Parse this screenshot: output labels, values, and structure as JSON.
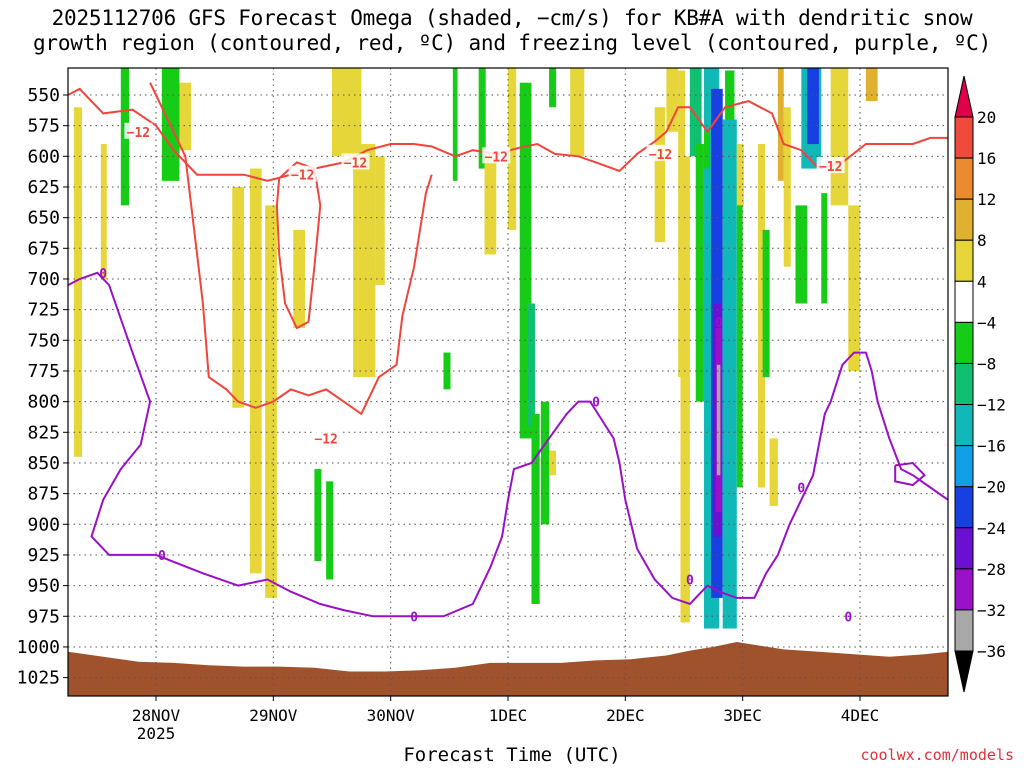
{
  "title_line1": "2025112706 GFS Forecast Omega (shaded, −cm/s) for KB#A with dendritic snow",
  "title_line2": "growth region (contoured, red, ºC) and freezing level (contoured, purple, ºC)",
  "credit": "coolwx.com/models",
  "chart_data": {
    "type": "heatmap",
    "xlabel": "Forecast Time (UTC)",
    "x_ticks": [
      {
        "t": 0.75,
        "label": "28NOV",
        "sub": "2025"
      },
      {
        "t": 1.75,
        "label": "29NOV"
      },
      {
        "t": 2.75,
        "label": "30NOV"
      },
      {
        "t": 3.75,
        "label": "1DEC"
      },
      {
        "t": 4.75,
        "label": "2DEC"
      },
      {
        "t": 5.75,
        "label": "3DEC"
      },
      {
        "t": 6.75,
        "label": "4DEC"
      }
    ],
    "x_range": [
      0,
      7.5
    ],
    "y_range": [
      528,
      1040
    ],
    "y_ticks": [
      550,
      575,
      600,
      625,
      650,
      675,
      700,
      725,
      750,
      775,
      800,
      825,
      850,
      875,
      900,
      925,
      950,
      975,
      1000,
      1025
    ],
    "colorbar_labels": [
      "20",
      "16",
      "12",
      "8",
      "4",
      "−4",
      "−8",
      "−12",
      "−16",
      "−20",
      "−24",
      "−28",
      "−32",
      "−36"
    ],
    "colorbar_colors": [
      "#e0004a",
      "#f04a3c",
      "#ec8a30",
      "#e0b030",
      "#e6d63a",
      "#ffffff",
      "#16cc16",
      "#10c070",
      "#10b8b8",
      "#10a0e8",
      "#1840e0",
      "#6a10d0",
      "#9a10c8",
      "#a8a8a8",
      "#000000"
    ],
    "surface_color": "#a0522d",
    "omega_shading": [
      {
        "t0": 0.05,
        "t1": 0.12,
        "p0": 560,
        "p1": 845,
        "color": "#e6d63a"
      },
      {
        "t0": 0.28,
        "t1": 0.33,
        "p0": 590,
        "p1": 700,
        "color": "#e6d63a"
      },
      {
        "t0": 0.45,
        "t1": 0.52,
        "p0": 528,
        "p1": 640,
        "color": "#16cc16"
      },
      {
        "t0": 0.8,
        "t1": 0.95,
        "p0": 528,
        "p1": 620,
        "color": "#16cc16"
      },
      {
        "t0": 0.95,
        "t1": 1.05,
        "p0": 540,
        "p1": 595,
        "color": "#e6d63a"
      },
      {
        "t0": 1.4,
        "t1": 1.5,
        "p0": 625,
        "p1": 805,
        "color": "#e6d63a"
      },
      {
        "t0": 1.55,
        "t1": 1.65,
        "p0": 610,
        "p1": 940,
        "color": "#e6d63a"
      },
      {
        "t0": 1.68,
        "t1": 1.78,
        "p0": 640,
        "p1": 960,
        "color": "#e6d63a"
      },
      {
        "t0": 1.92,
        "t1": 2.02,
        "p0": 660,
        "p1": 740,
        "color": "#e6d63a"
      },
      {
        "t0": 2.1,
        "t1": 2.16,
        "p0": 855,
        "p1": 930,
        "color": "#16cc16"
      },
      {
        "t0": 2.2,
        "t1": 2.26,
        "p0": 865,
        "p1": 945,
        "color": "#16cc16"
      },
      {
        "t0": 2.25,
        "t1": 2.5,
        "p0": 528,
        "p1": 600,
        "color": "#e6d63a"
      },
      {
        "t0": 2.43,
        "t1": 2.62,
        "p0": 590,
        "p1": 780,
        "color": "#e6d63a"
      },
      {
        "t0": 2.62,
        "t1": 2.7,
        "p0": 600,
        "p1": 705,
        "color": "#e6d63a"
      },
      {
        "t0": 3.2,
        "t1": 3.26,
        "p0": 760,
        "p1": 790,
        "color": "#16cc16"
      },
      {
        "t0": 3.28,
        "t1": 3.32,
        "p0": 528,
        "p1": 620,
        "color": "#16cc16"
      },
      {
        "t0": 3.5,
        "t1": 3.56,
        "p0": 528,
        "p1": 610,
        "color": "#16cc16"
      },
      {
        "t0": 3.55,
        "t1": 3.65,
        "p0": 600,
        "p1": 680,
        "color": "#e6d63a"
      },
      {
        "t0": 3.75,
        "t1": 3.82,
        "p0": 528,
        "p1": 660,
        "color": "#e6d63a"
      },
      {
        "t0": 3.85,
        "t1": 3.95,
        "p0": 540,
        "p1": 830,
        "color": "#16cc16"
      },
      {
        "t0": 3.92,
        "t1": 3.98,
        "p0": 720,
        "p1": 820,
        "color": "#10c070"
      },
      {
        "t0": 3.95,
        "t1": 4.02,
        "p0": 810,
        "p1": 965,
        "color": "#16cc16"
      },
      {
        "t0": 4.03,
        "t1": 4.1,
        "p0": 800,
        "p1": 900,
        "color": "#16cc16"
      },
      {
        "t0": 4.1,
        "t1": 4.16,
        "p0": 840,
        "p1": 860,
        "color": "#e6d63a"
      },
      {
        "t0": 4.1,
        "t1": 4.16,
        "p0": 528,
        "p1": 560,
        "color": "#16cc16"
      },
      {
        "t0": 4.28,
        "t1": 4.4,
        "p0": 528,
        "p1": 600,
        "color": "#e6d63a"
      },
      {
        "t0": 5.0,
        "t1": 5.09,
        "p0": 560,
        "p1": 670,
        "color": "#e6d63a"
      },
      {
        "t0": 5.1,
        "t1": 5.2,
        "p0": 528,
        "p1": 580,
        "color": "#e6d63a"
      },
      {
        "t0": 5.2,
        "t1": 5.26,
        "p0": 530,
        "p1": 780,
        "color": "#e6d63a"
      },
      {
        "t0": 5.22,
        "t1": 5.3,
        "p0": 600,
        "p1": 980,
        "color": "#e6d63a"
      },
      {
        "t0": 5.3,
        "t1": 5.4,
        "p0": 528,
        "p1": 600,
        "color": "#10c070"
      },
      {
        "t0": 5.35,
        "t1": 5.42,
        "p0": 590,
        "p1": 800,
        "color": "#16cc16"
      },
      {
        "t0": 5.42,
        "t1": 5.55,
        "p0": 528,
        "p1": 985,
        "color": "#10b8b8"
      },
      {
        "t0": 5.42,
        "t1": 5.47,
        "p0": 580,
        "p1": 610,
        "color": "#16cc16"
      },
      {
        "t0": 5.48,
        "t1": 5.58,
        "p0": 545,
        "p1": 960,
        "color": "#1840e0"
      },
      {
        "t0": 5.5,
        "t1": 5.57,
        "p0": 720,
        "p1": 910,
        "color": "#6a10d0"
      },
      {
        "t0": 5.52,
        "t1": 5.57,
        "p0": 740,
        "p1": 890,
        "color": "#9a10c8"
      },
      {
        "t0": 5.53,
        "t1": 5.56,
        "p0": 770,
        "p1": 860,
        "color": "#a8a8a8"
      },
      {
        "t0": 5.58,
        "t1": 5.7,
        "p0": 570,
        "p1": 985,
        "color": "#10b8b8"
      },
      {
        "t0": 5.6,
        "t1": 5.68,
        "p0": 530,
        "p1": 570,
        "color": "#16cc16"
      },
      {
        "t0": 5.7,
        "t1": 5.75,
        "p0": 620,
        "p1": 870,
        "color": "#16cc16"
      },
      {
        "t0": 5.7,
        "t1": 5.76,
        "p0": 590,
        "p1": 640,
        "color": "#e6d63a"
      },
      {
        "t0": 5.88,
        "t1": 5.94,
        "p0": 590,
        "p1": 870,
        "color": "#e6d63a"
      },
      {
        "t0": 5.92,
        "t1": 5.98,
        "p0": 660,
        "p1": 780,
        "color": "#16cc16"
      },
      {
        "t0": 5.98,
        "t1": 6.05,
        "p0": 830,
        "p1": 885,
        "color": "#e6d63a"
      },
      {
        "t0": 6.05,
        "t1": 6.1,
        "p0": 528,
        "p1": 620,
        "color": "#e0b030"
      },
      {
        "t0": 6.1,
        "t1": 6.16,
        "p0": 560,
        "p1": 690,
        "color": "#e6d63a"
      },
      {
        "t0": 6.2,
        "t1": 6.3,
        "p0": 640,
        "p1": 720,
        "color": "#16cc16"
      },
      {
        "t0": 6.25,
        "t1": 6.42,
        "p0": 528,
        "p1": 610,
        "color": "#10b8b8"
      },
      {
        "t0": 6.3,
        "t1": 6.4,
        "p0": 528,
        "p1": 590,
        "color": "#1840e0"
      },
      {
        "t0": 6.42,
        "t1": 6.47,
        "p0": 630,
        "p1": 720,
        "color": "#16cc16"
      },
      {
        "t0": 6.5,
        "t1": 6.65,
        "p0": 528,
        "p1": 640,
        "color": "#e6d63a"
      },
      {
        "t0": 6.65,
        "t1": 6.75,
        "p0": 640,
        "p1": 775,
        "color": "#e6d63a"
      },
      {
        "t0": 6.8,
        "t1": 6.9,
        "p0": 528,
        "p1": 555,
        "color": "#e0b030"
      }
    ],
    "dgz_contour": {
      "label": "−12",
      "top_line": [
        [
          0,
          550
        ],
        [
          0.1,
          545
        ],
        [
          0.3,
          565
        ],
        [
          0.55,
          562
        ],
        [
          0.75,
          575
        ],
        [
          0.9,
          595
        ],
        [
          1.1,
          615
        ],
        [
          1.3,
          615
        ],
        [
          1.5,
          615
        ],
        [
          1.7,
          620
        ],
        [
          1.9,
          615
        ],
        [
          2.1,
          610
        ],
        [
          2.35,
          605
        ],
        [
          2.55,
          595
        ],
        [
          2.75,
          590
        ],
        [
          2.95,
          590
        ],
        [
          3.1,
          592
        ],
        [
          3.3,
          600
        ],
        [
          3.45,
          595
        ],
        [
          3.65,
          598
        ],
        [
          3.85,
          593
        ],
        [
          4.0,
          590
        ],
        [
          4.15,
          598
        ],
        [
          4.35,
          600
        ],
        [
          4.5,
          605
        ],
        [
          4.7,
          612
        ],
        [
          4.85,
          598
        ],
        [
          5.0,
          588
        ],
        [
          5.1,
          580
        ],
        [
          5.2,
          560
        ],
        [
          5.3,
          560
        ],
        [
          5.45,
          580
        ],
        [
          5.6,
          560
        ],
        [
          5.8,
          555
        ],
        [
          6.0,
          565
        ],
        [
          6.1,
          590
        ],
        [
          6.25,
          595
        ],
        [
          6.4,
          610
        ],
        [
          6.6,
          605
        ],
        [
          6.8,
          590
        ],
        [
          7.0,
          590
        ],
        [
          7.2,
          590
        ],
        [
          7.35,
          585
        ],
        [
          7.5,
          585
        ]
      ],
      "bottom_line": [
        [
          0.7,
          540
        ],
        [
          1.0,
          600
        ],
        [
          1.1,
          680
        ],
        [
          1.15,
          720
        ],
        [
          1.2,
          780
        ],
        [
          1.35,
          790
        ],
        [
          1.45,
          800
        ],
        [
          1.6,
          805
        ],
        [
          1.75,
          800
        ],
        [
          1.9,
          790
        ],
        [
          2.05,
          795
        ],
        [
          2.2,
          790
        ],
        [
          2.35,
          800
        ],
        [
          2.5,
          810
        ],
        [
          2.65,
          780
        ],
        [
          2.8,
          770
        ],
        [
          2.85,
          730
        ],
        [
          2.95,
          690
        ],
        [
          3.0,
          660
        ],
        [
          3.05,
          630
        ],
        [
          3.1,
          615
        ]
      ],
      "inner_loop": [
        [
          1.8,
          618
        ],
        [
          1.95,
          605
        ],
        [
          2.1,
          610
        ],
        [
          2.15,
          640
        ],
        [
          2.1,
          690
        ],
        [
          2.05,
          735
        ],
        [
          1.95,
          740
        ],
        [
          1.85,
          720
        ],
        [
          1.8,
          680
        ],
        [
          1.78,
          640
        ],
        [
          1.8,
          618
        ]
      ]
    },
    "freezing_contour": {
      "label": "0",
      "line": [
        [
          0,
          705
        ],
        [
          0.1,
          700
        ],
        [
          0.25,
          695
        ],
        [
          0.35,
          705
        ],
        [
          0.55,
          760
        ],
        [
          0.7,
          800
        ],
        [
          0.62,
          835
        ],
        [
          0.45,
          855
        ],
        [
          0.3,
          880
        ],
        [
          0.2,
          910
        ],
        [
          0.35,
          925
        ],
        [
          0.75,
          925
        ],
        [
          1.15,
          940
        ],
        [
          1.45,
          950
        ],
        [
          1.7,
          945
        ],
        [
          1.9,
          955
        ],
        [
          2.15,
          965
        ],
        [
          2.35,
          970
        ],
        [
          2.6,
          975
        ],
        [
          2.9,
          975
        ],
        [
          3.2,
          975
        ],
        [
          3.45,
          965
        ],
        [
          3.6,
          935
        ],
        [
          3.7,
          910
        ],
        [
          3.75,
          880
        ],
        [
          3.8,
          855
        ],
        [
          3.95,
          850
        ],
        [
          4.1,
          830
        ],
        [
          4.25,
          810
        ],
        [
          4.35,
          800
        ],
        [
          4.45,
          800
        ],
        [
          4.55,
          815
        ],
        [
          4.65,
          830
        ],
        [
          4.7,
          850
        ],
        [
          4.75,
          880
        ],
        [
          4.85,
          920
        ],
        [
          5.0,
          945
        ],
        [
          5.15,
          960
        ],
        [
          5.3,
          965
        ],
        [
          5.45,
          950
        ],
        [
          5.55,
          955
        ],
        [
          5.7,
          960
        ],
        [
          5.85,
          960
        ],
        [
          5.95,
          940
        ],
        [
          6.05,
          925
        ],
        [
          6.15,
          900
        ],
        [
          6.25,
          880
        ],
        [
          6.35,
          860
        ],
        [
          6.4,
          835
        ],
        [
          6.45,
          810
        ],
        [
          6.5,
          800
        ],
        [
          6.6,
          770
        ],
        [
          6.7,
          760
        ],
        [
          6.8,
          760
        ],
        [
          6.85,
          775
        ],
        [
          6.9,
          800
        ],
        [
          7.0,
          830
        ],
        [
          7.1,
          855
        ],
        [
          7.2,
          860
        ],
        [
          7.35,
          870
        ],
        [
          7.5,
          880
        ]
      ],
      "small_loop": [
        [
          7.05,
          852
        ],
        [
          7.2,
          850
        ],
        [
          7.3,
          860
        ],
        [
          7.2,
          868
        ],
        [
          7.05,
          865
        ],
        [
          7.05,
          852
        ]
      ]
    },
    "surface_pressure": [
      [
        0,
        1004
      ],
      [
        0.3,
        1008
      ],
      [
        0.6,
        1012
      ],
      [
        0.9,
        1013
      ],
      [
        1.2,
        1015
      ],
      [
        1.5,
        1016
      ],
      [
        1.8,
        1016
      ],
      [
        2.1,
        1017
      ],
      [
        2.4,
        1020
      ],
      [
        2.7,
        1020
      ],
      [
        3.0,
        1019
      ],
      [
        3.3,
        1017
      ],
      [
        3.6,
        1013
      ],
      [
        3.9,
        1013
      ],
      [
        4.2,
        1013
      ],
      [
        4.5,
        1011
      ],
      [
        4.8,
        1010
      ],
      [
        5.1,
        1007
      ],
      [
        5.3,
        1003
      ],
      [
        5.5,
        1000
      ],
      [
        5.7,
        996
      ],
      [
        5.9,
        999
      ],
      [
        6.1,
        1002
      ],
      [
        6.4,
        1004
      ],
      [
        6.7,
        1006
      ],
      [
        7.0,
        1008
      ],
      [
        7.3,
        1006
      ],
      [
        7.5,
        1004
      ]
    ]
  }
}
